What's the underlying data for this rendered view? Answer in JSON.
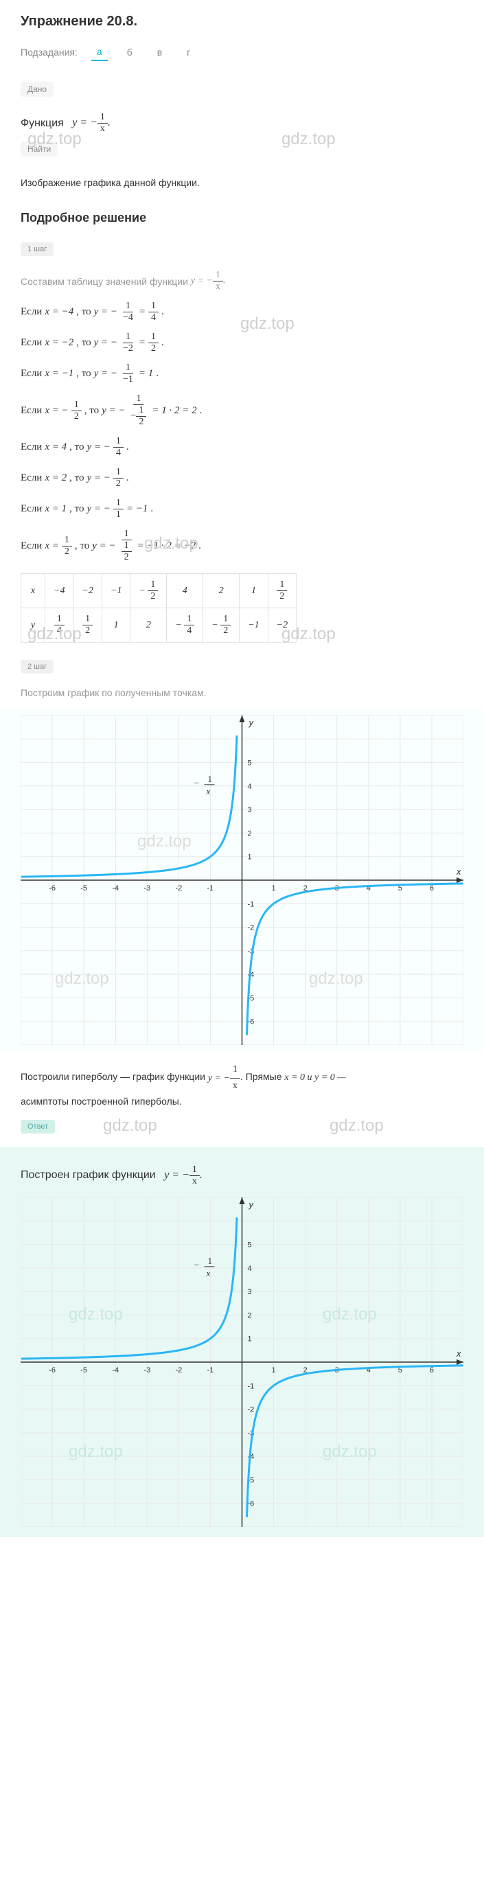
{
  "title": "Упражнение 20.8.",
  "subtasks_label": "Подзадания:",
  "tabs": [
    "а",
    "б",
    "в",
    "г"
  ],
  "active_tab": 0,
  "dano_label": "Дано",
  "function_text": "Функция",
  "function_formula": {
    "lhs": "y = −",
    "num": "1",
    "den": "x"
  },
  "naiti_label": "Найти",
  "naiti_text": "Изображение графика данной функции.",
  "solution_title": "Подробное решение",
  "step1_label": "1 шаг",
  "step1_text": "Составим таблицу значений функции",
  "step1_formula": {
    "lhs": "y = −",
    "num": "1",
    "den": "x"
  },
  "calcs": [
    {
      "pre": "Если",
      "x": "x = −4",
      "mid": ", то",
      "y": {
        "lhs": "y = −",
        "n1": "1",
        "d1": "−4",
        "eq": " = ",
        "n2": "1",
        "d2": "4"
      },
      "end": "."
    },
    {
      "pre": "Если",
      "x": "x = −2",
      "mid": ", то",
      "y": {
        "lhs": "y = −",
        "n1": "1",
        "d1": "−2",
        "eq": " = ",
        "n2": "1",
        "d2": "2"
      },
      "end": "."
    },
    {
      "pre": "Если",
      "x": "x = −1",
      "mid": ", то",
      "y": {
        "lhs": "y = −",
        "n1": "1",
        "d1": "−1",
        "eq": " = 1"
      },
      "end": "."
    },
    {
      "pre": "Если",
      "x_frac": {
        "lhs": "x = −",
        "n": "1",
        "d": "2"
      },
      "mid": ", то",
      "y": {
        "lhs": "y = −",
        "n1": "1",
        "d1_frac": {
          "n": "1",
          "d": "2",
          "neg": true
        },
        "eq": " = 1 · 2 = 2"
      },
      "end": "."
    },
    {
      "pre": "Если",
      "x": "x = 4",
      "mid": ", то",
      "y": {
        "lhs": "y = −",
        "n1": "1",
        "d1": "4"
      },
      "end": "."
    },
    {
      "pre": "Если",
      "x": "x = 2",
      "mid": ", то",
      "y": {
        "lhs": "y = −",
        "n1": "1",
        "d1": "2"
      },
      "end": "."
    },
    {
      "pre": "Если",
      "x": "x = 1",
      "mid": ", то",
      "y": {
        "lhs": "y = −",
        "n1": "1",
        "d1": "1",
        "eq": " = −1"
      },
      "end": "."
    },
    {
      "pre": "Если",
      "x_frac": {
        "lhs": "x = ",
        "n": "1",
        "d": "2"
      },
      "mid": ", то",
      "y": {
        "lhs": "y = −",
        "n1": "1",
        "d1_frac": {
          "n": "1",
          "d": "2"
        },
        "eq": " = −1 · 2 = −2"
      },
      "end": "."
    }
  ],
  "table": {
    "headers": [
      "x",
      "−4",
      "−2",
      "−1",
      "−½",
      "4",
      "2",
      "1",
      "½"
    ],
    "row_x": [
      "x",
      "−4",
      "−2",
      "−1",
      {
        "neg": true,
        "n": "1",
        "d": "2"
      },
      "4",
      "2",
      "1",
      {
        "n": "1",
        "d": "2"
      }
    ],
    "row_y": [
      "y",
      {
        "n": "1",
        "d": "4"
      },
      {
        "n": "1",
        "d": "2"
      },
      "1",
      "2",
      {
        "neg": true,
        "n": "1",
        "d": "4"
      },
      {
        "neg": true,
        "n": "1",
        "d": "2"
      },
      "−1",
      "−2"
    ]
  },
  "step2_label": "2 шаг",
  "step2_text": "Построим график по полученным точкам.",
  "graph": {
    "xmin": -7,
    "xmax": 7,
    "ymin": -7,
    "ymax": 7,
    "xtick_labels": [
      "-6",
      "-5",
      "-4",
      "-3",
      "-2",
      "-1",
      "1",
      "2",
      "3",
      "4",
      "5",
      "6"
    ],
    "ytick_labels": [
      "-6",
      "-5",
      "-4",
      "-3",
      "-2",
      "-1",
      "1",
      "2",
      "3",
      "4",
      "5"
    ],
    "x_label": "x",
    "y_label": "y",
    "curve_label": {
      "lhs": "−",
      "n": "1",
      "d": "x"
    },
    "grid_color": "#e8e8e8",
    "axis_color": "#333",
    "curve_color": "#29b6f6",
    "bg_color": "#f9fffe"
  },
  "conclusion_pre": "Построили гиперболу — график функции",
  "conclusion_formula": {
    "lhs": "y = −",
    "num": "1",
    "den": "x"
  },
  "conclusion_post": ". Прямые",
  "conclusion_lines": "x = 0 и y = 0 —",
  "conclusion_end": "асимптоты построенной гиперболы.",
  "answer_label": "Ответ",
  "answer_text": "Построен график функции",
  "answer_formula": {
    "lhs": "y = −",
    "num": "1",
    "den": "x"
  },
  "watermark": "gdz.top"
}
